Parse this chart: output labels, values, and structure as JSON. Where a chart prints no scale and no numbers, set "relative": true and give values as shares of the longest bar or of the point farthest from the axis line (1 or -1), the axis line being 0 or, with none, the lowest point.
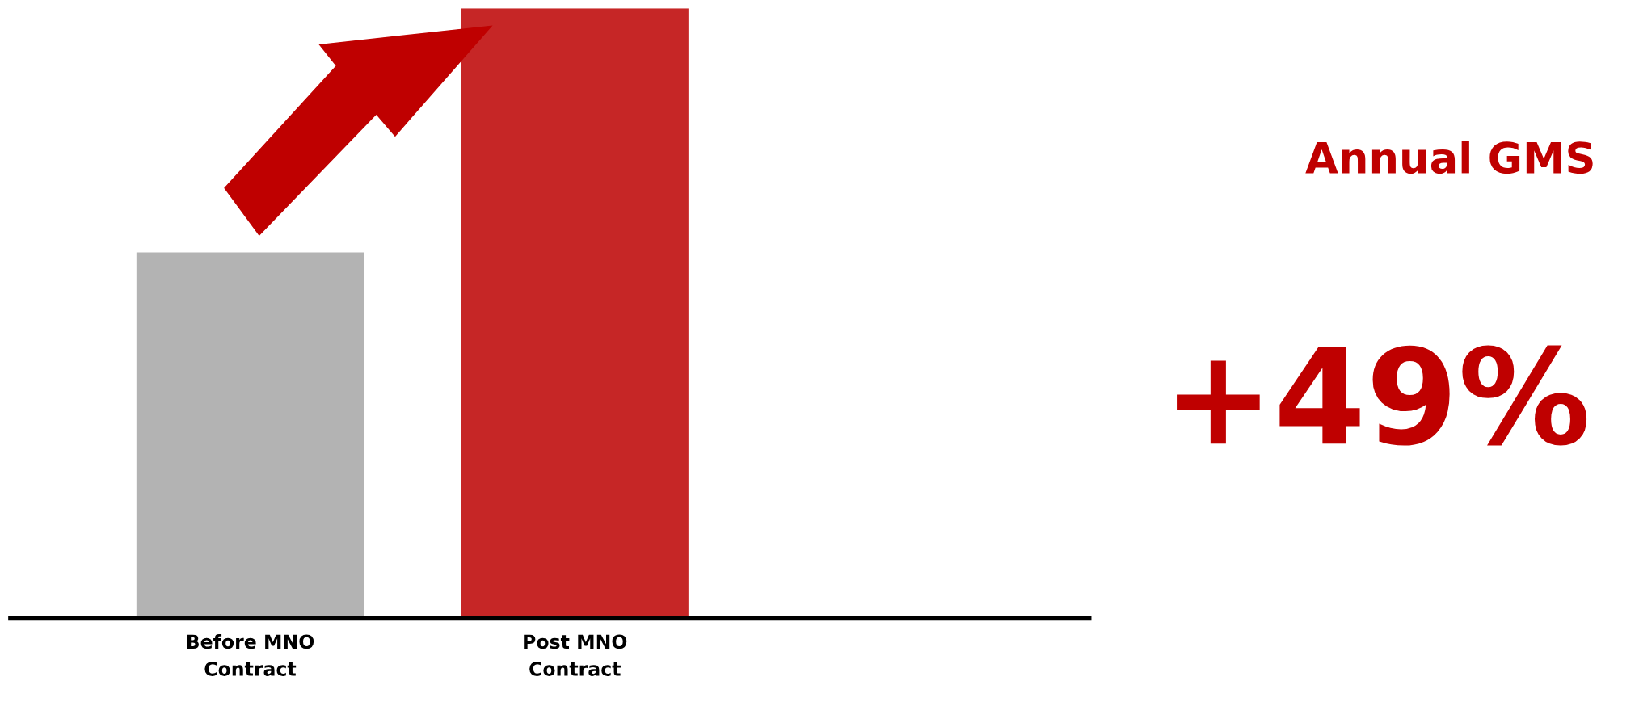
{
  "chart_data": {
    "type": "bar",
    "relative": true,
    "categories": [
      "Before MNO\nContract",
      "Post MNO\nContract"
    ],
    "values": [
      0.6,
      1
    ],
    "colors": [
      "#b3b3b3",
      "#c62626"
    ],
    "annotations": [
      "Annual GMS",
      "+49%"
    ],
    "grid": false,
    "legend": false
  }
}
